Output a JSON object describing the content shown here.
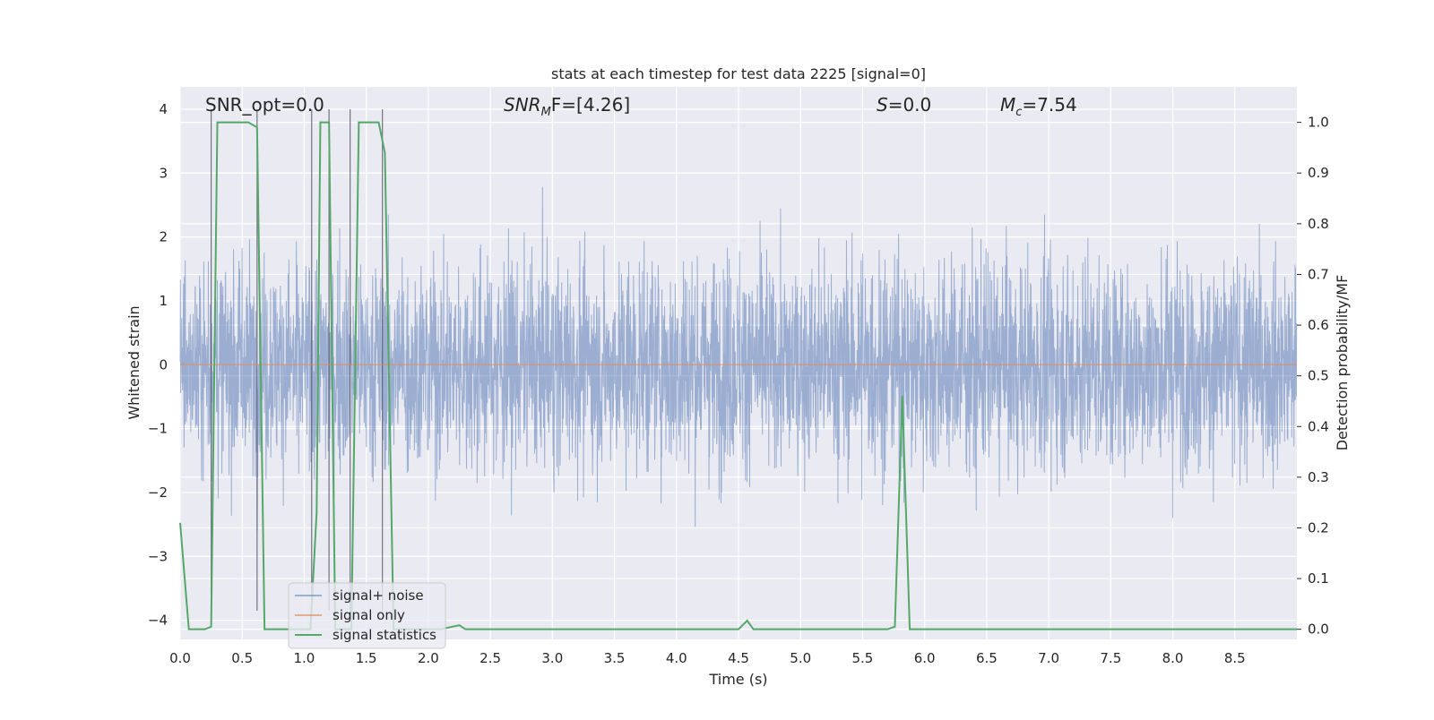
{
  "chart_data": {
    "type": "line",
    "title": "stats at each timestep for test data 2225 [signal=0]",
    "xlabel": "Time (s)",
    "ylabel": "Whitened strain",
    "ylabel_right": "Detection probability/MF",
    "xlim": [
      0.0,
      9.0
    ],
    "ylim_left": [
      -4.3,
      4.35
    ],
    "ylim_right": [
      -0.02,
      1.07
    ],
    "x_ticks": [
      "0.0",
      "0.5",
      "1.0",
      "1.5",
      "2.0",
      "2.5",
      "3.0",
      "3.5",
      "4.0",
      "4.5",
      "5.0",
      "5.5",
      "6.0",
      "6.5",
      "7.0",
      "7.5",
      "8.0",
      "8.5"
    ],
    "y_ticks_left": [
      "4",
      "3",
      "2",
      "1",
      "0",
      "−1",
      "−2",
      "−3",
      "−4"
    ],
    "y_ticks_right": [
      "1.0",
      "0.9",
      "0.8",
      "0.7",
      "0.6",
      "0.5",
      "0.4",
      "0.3",
      "0.2",
      "0.1",
      "0.0"
    ],
    "grid": true,
    "legend_position": "lower-left",
    "annotations": {
      "snr_opt": "SNR_opt=0.0",
      "snr_mf_prefix": "SNR",
      "snr_mf_sub": "M",
      "snr_mf_suffix": "F=[4.26]",
      "s_italic": "S",
      "s_value": "=0.0",
      "mc_italic": "M",
      "mc_sub": "c",
      "mc_value": "=7.54"
    },
    "series": [
      {
        "name": "signal+ noise",
        "color": "#4c72b0",
        "axis": "left",
        "description": "dense whitened noise, approx uniform between about -2.3 and 2.6 with peaks up to 3.6 and dips to -3.8",
        "typical_range": [
          -2.3,
          2.6
        ]
      },
      {
        "name": "signal only",
        "color": "#dd8452",
        "axis": "left",
        "x": [
          0.0,
          9.0
        ],
        "y": [
          0.0,
          0.0
        ]
      },
      {
        "name": "signal statistics",
        "color": "#55a868",
        "axis": "right",
        "x": [
          0.0,
          0.07,
          0.2,
          0.25,
          0.3,
          0.55,
          0.62,
          0.68,
          1.05,
          1.1,
          1.13,
          1.2,
          1.25,
          1.38,
          1.44,
          1.6,
          1.65,
          1.72,
          2.1,
          2.25,
          2.3,
          4.5,
          4.57,
          4.62,
          5.7,
          5.76,
          5.82,
          5.88,
          9.0
        ],
        "y": [
          0.21,
          0.0,
          0.0,
          0.005,
          1.0,
          1.0,
          0.99,
          0.0,
          0.0,
          0.23,
          1.0,
          1.0,
          0.0,
          0.0,
          1.0,
          1.0,
          0.94,
          0.0,
          0.0,
          0.008,
          0.0,
          0.0,
          0.017,
          0.0,
          0.0,
          0.005,
          0.46,
          0.0,
          0.0
        ]
      }
    ],
    "vertical_markers_x": [
      0.25,
      0.62,
      1.06,
      1.2,
      1.37,
      1.63
    ]
  }
}
